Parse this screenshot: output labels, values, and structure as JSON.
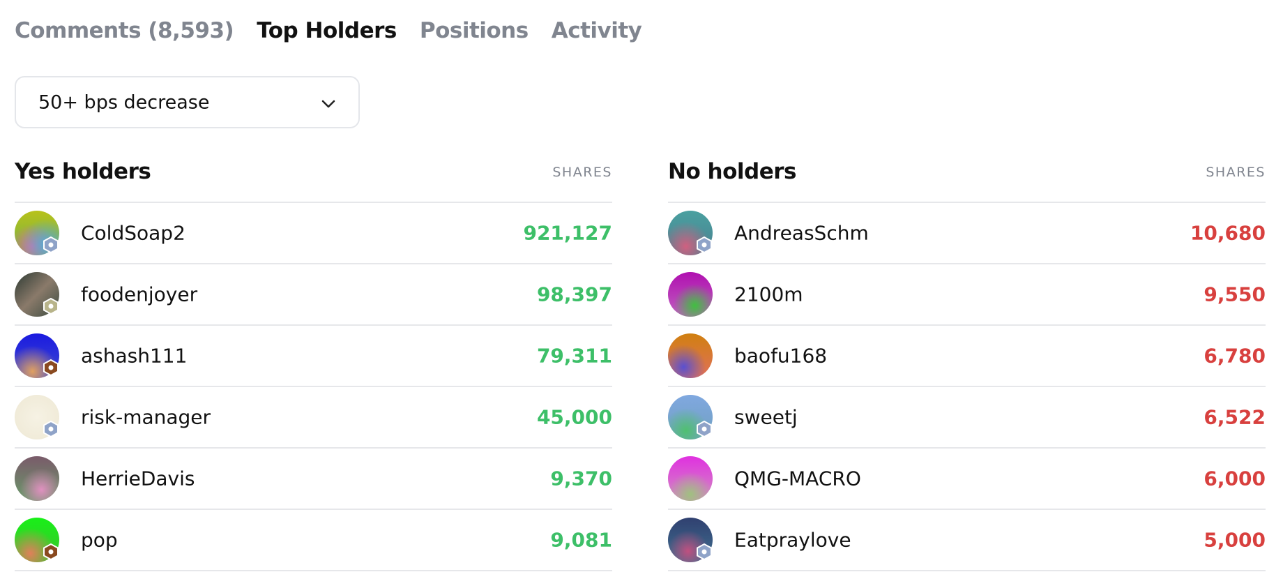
{
  "tabs": [
    "Comments (8,593)",
    "Top Holders",
    "Positions",
    "Activity"
  ],
  "active_tab": 1,
  "dropdown": {
    "label": "50+ bps decrease"
  },
  "columns": [
    {
      "title": "Yes holders",
      "shares_header": "SHARES",
      "color": "#3dbf68",
      "rows": [
        {
          "name": "ColdSoap2",
          "shares": "921,127"
        },
        {
          "name": "foodenjoyer",
          "shares": "98,397"
        },
        {
          "name": "ashash111",
          "shares": "79,311"
        },
        {
          "name": "risk-manager",
          "shares": "45,000"
        },
        {
          "name": "HerrieDavis",
          "shares": "9,370"
        },
        {
          "name": "pop",
          "shares": "9,081"
        }
      ]
    },
    {
      "title": "No holders",
      "shares_header": "SHARES",
      "color": "#d8403e",
      "rows": [
        {
          "name": "AndreasSchm",
          "shares": "10,680"
        },
        {
          "name": "2100m",
          "shares": "9,550"
        },
        {
          "name": "baofu168",
          "shares": "6,780"
        },
        {
          "name": "sweetj",
          "shares": "6,522"
        },
        {
          "name": "QMG-MACRO",
          "shares": "6,000"
        },
        {
          "name": "Eatpraylove",
          "shares": "5,000"
        }
      ]
    }
  ]
}
